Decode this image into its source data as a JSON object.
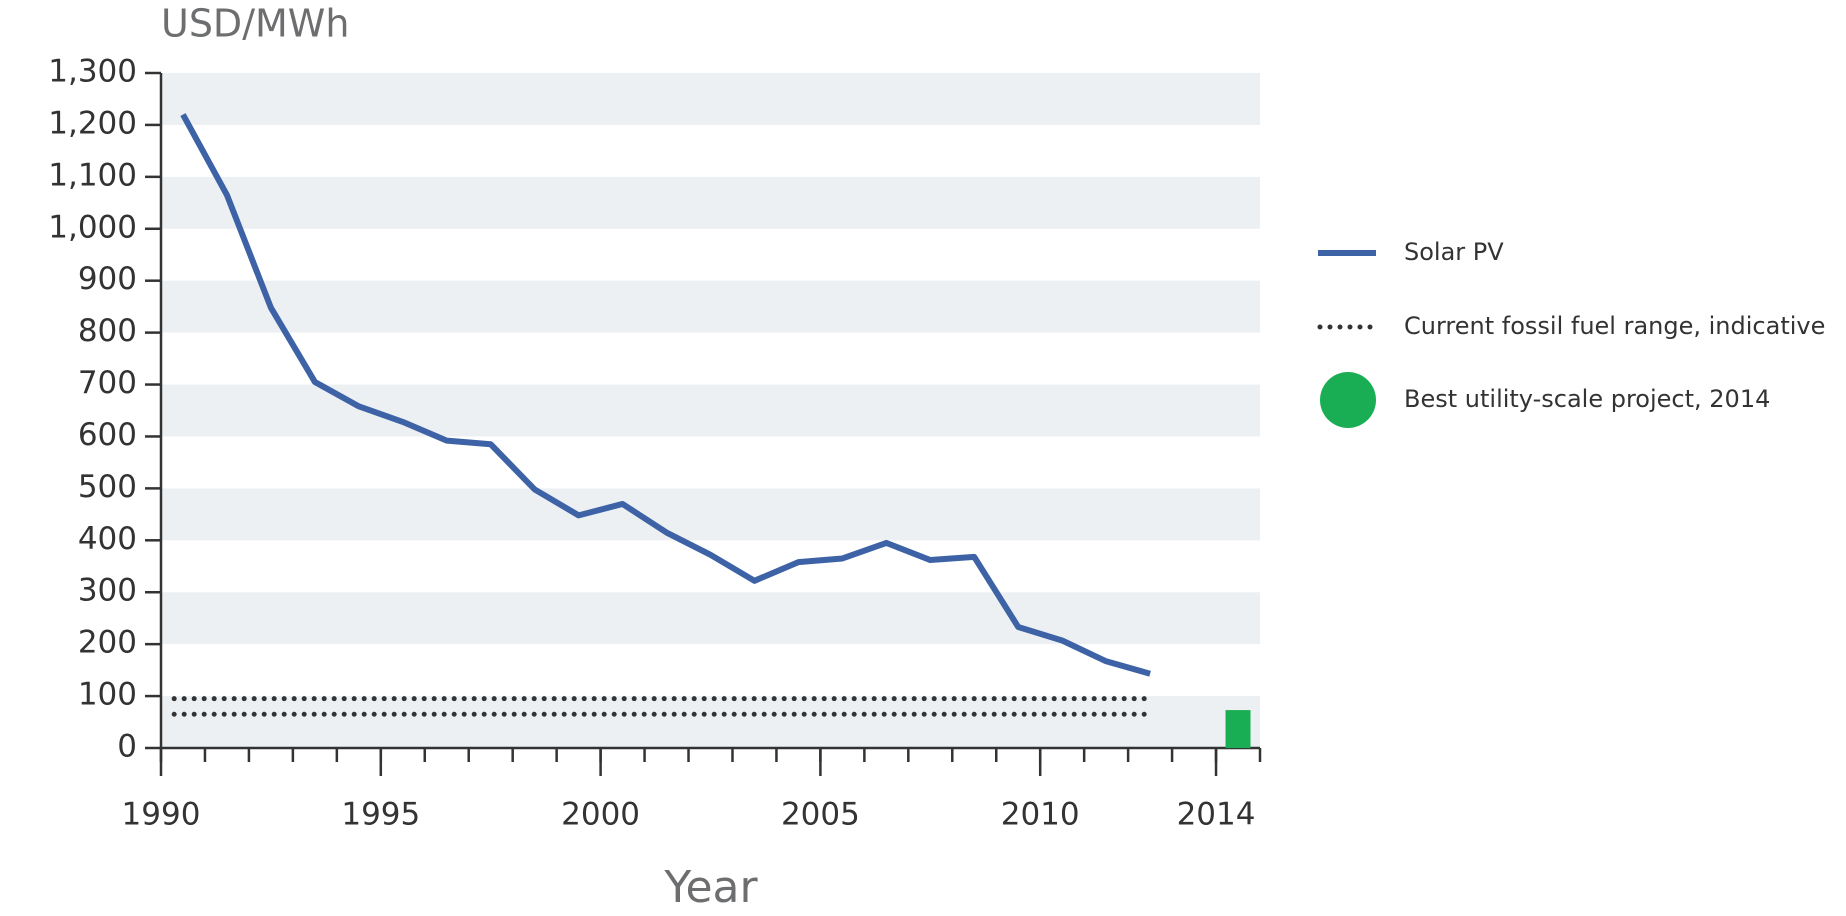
{
  "chart_data": {
    "type": "line",
    "ylabel": "USD/MWh",
    "xlabel": "Year",
    "xlim": [
      1990,
      2015
    ],
    "xticks": [
      1990,
      1995,
      2000,
      2005,
      2010,
      2014
    ],
    "ylim": [
      0,
      1300
    ],
    "yticks": [
      0,
      100,
      200,
      300,
      400,
      500,
      600,
      700,
      800,
      900,
      {
        "value": 1000,
        "label": "1,000"
      },
      {
        "value": 1100,
        "label": "1,100"
      },
      {
        "value": 1200,
        "label": "1,200"
      },
      {
        "value": 1300,
        "label": "1,300"
      }
    ],
    "x": [
      1990.5,
      1991.5,
      1992.5,
      1993.5,
      1994.5,
      1995.5,
      1996.5,
      1997.5,
      1998.5,
      1999.5,
      2000.5,
      2001.5,
      2002.5,
      2003.5,
      2004.5,
      2005.5,
      2006.5,
      2007.5,
      2008.5,
      2009.5,
      2010.5,
      2011.5,
      2012.5
    ],
    "series": [
      {
        "name": "Solar PV",
        "color": "#3d63a6",
        "values": [
          1220,
          1065,
          848,
          705,
          658,
          628,
          592,
          585,
          498,
          448,
          470,
          415,
          372,
          322,
          358,
          365,
          395,
          362,
          368,
          233,
          207,
          167,
          143
        ]
      }
    ],
    "fossil_range": {
      "name": "Current fossil fuel range, indicative",
      "color": "#333333",
      "low": 65,
      "high": 95,
      "x": [
        1990.3,
        2012.5
      ]
    },
    "best_project": {
      "name": "Best utility-scale project, 2014",
      "color": "#1aae54",
      "x": 2014.5,
      "value": 73
    },
    "band_color": "#edf0f3"
  }
}
